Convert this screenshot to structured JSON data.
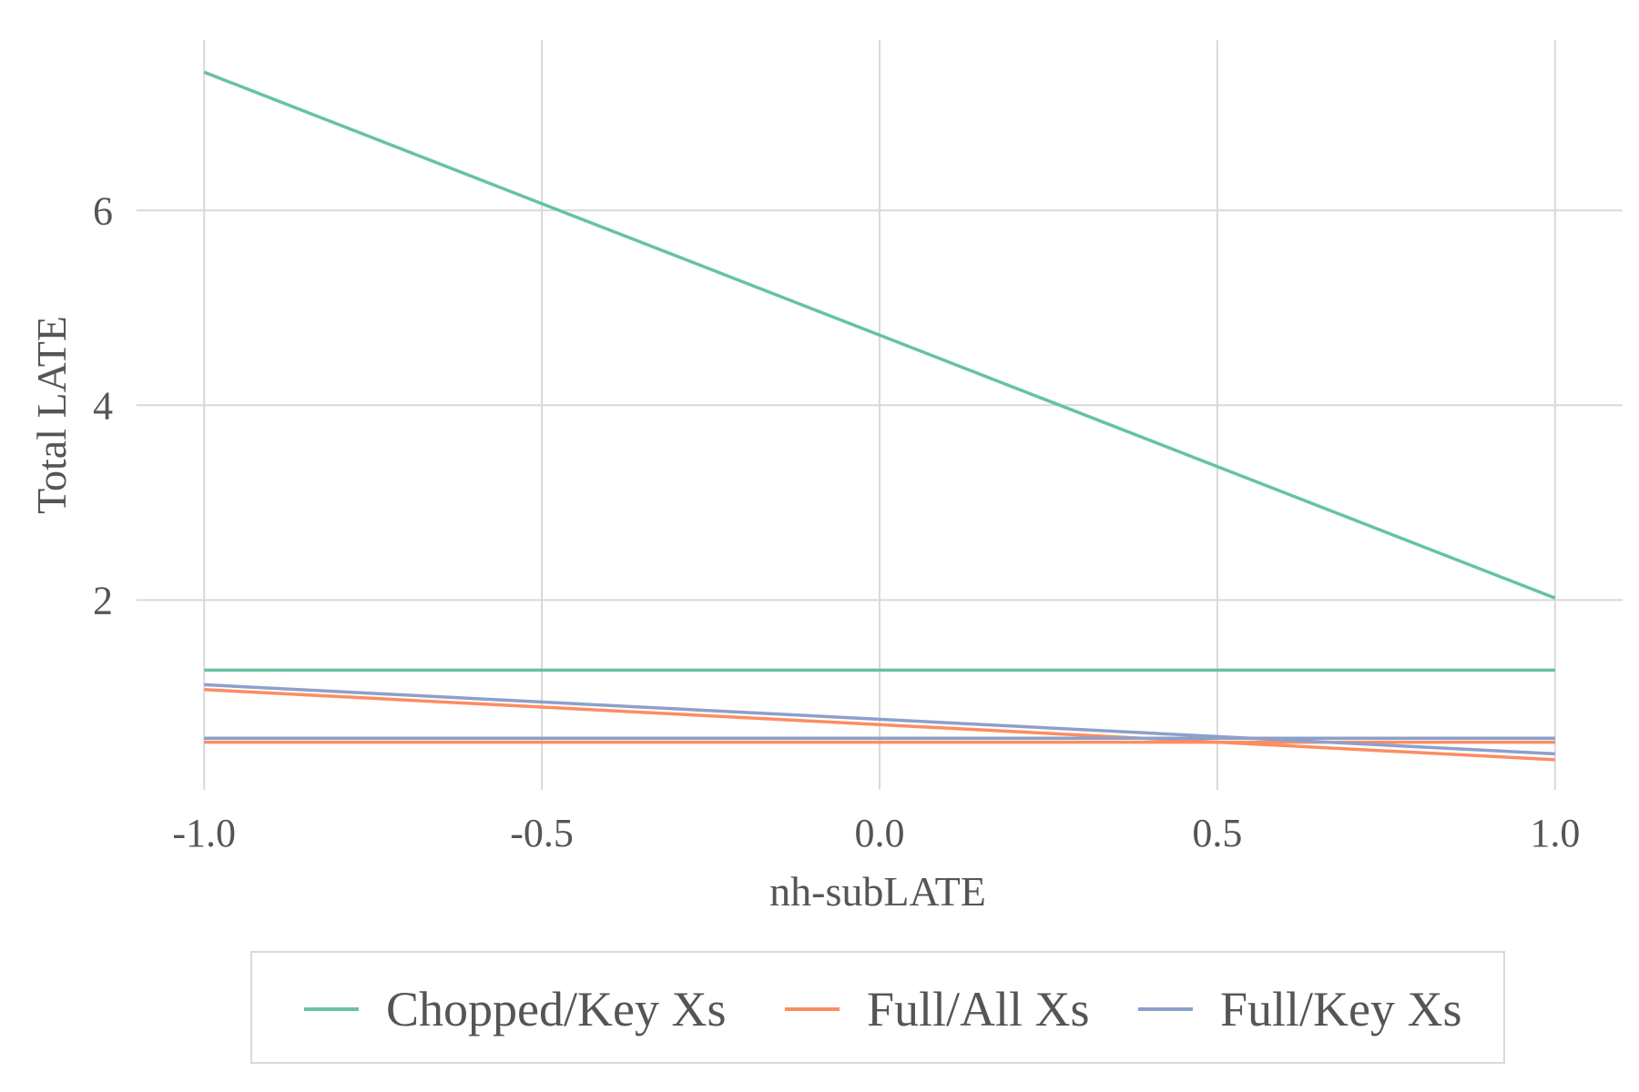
{
  "chart_data": {
    "type": "line",
    "xlabel": "nh-subLATE",
    "ylabel": "Total LATE",
    "xlim": [
      -1.1,
      1.1
    ],
    "ylim": [
      0.05,
      7.75
    ],
    "x_ticks": [
      -1.0,
      -0.5,
      0.0,
      0.5,
      1.0
    ],
    "x_tick_labels": [
      "-1.0",
      "-0.5",
      "0.0",
      "0.5",
      "1.0"
    ],
    "y_ticks": [
      2,
      4,
      6
    ],
    "y_tick_labels": [
      "2",
      "4",
      "6"
    ],
    "grid": true,
    "legend_position": "bottom",
    "series": [
      {
        "name": "Chopped/Key Xs",
        "color": "#66c2a5",
        "x": [
          -1.0,
          1.0
        ],
        "values": [
          7.42,
          2.02
        ]
      },
      {
        "name": "Chopped/Key Xs",
        "color": "#66c2a5",
        "legend": false,
        "x": [
          -1.0,
          1.0
        ],
        "values": [
          1.28,
          1.28
        ]
      },
      {
        "name": "Full/All Xs",
        "color": "#fc8d62",
        "x": [
          -1.0,
          1.0
        ],
        "values": [
          1.08,
          0.36
        ]
      },
      {
        "name": "Full/All Xs",
        "color": "#fc8d62",
        "legend": false,
        "x": [
          -1.0,
          1.0
        ],
        "values": [
          0.54,
          0.54
        ]
      },
      {
        "name": "Full/Key Xs",
        "color": "#8da0cb",
        "x": [
          -1.0,
          1.0
        ],
        "values": [
          1.13,
          0.42
        ]
      },
      {
        "name": "Full/Key Xs",
        "color": "#8da0cb",
        "legend": false,
        "x": [
          -1.0,
          1.0
        ],
        "values": [
          0.58,
          0.58
        ]
      }
    ],
    "legend": [
      {
        "label": "Chopped/Key Xs",
        "color": "#66c2a5"
      },
      {
        "label": "Full/All Xs",
        "color": "#fc8d62"
      },
      {
        "label": "Full/Key Xs",
        "color": "#8da0cb"
      }
    ]
  }
}
